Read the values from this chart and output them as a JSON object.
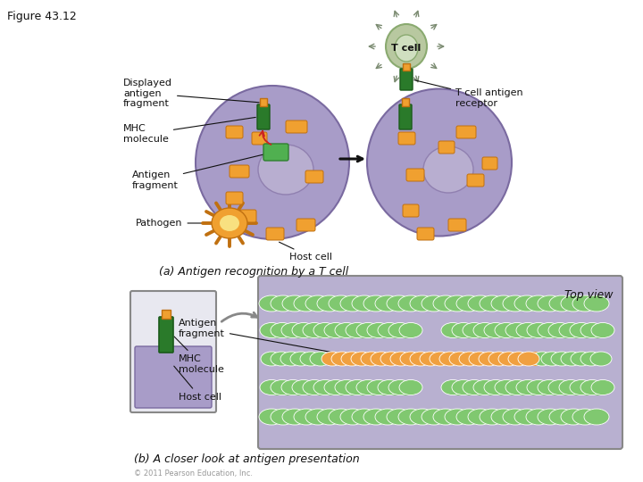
{
  "figure_label": "Figure 43.12",
  "background_color": "#ffffff",
  "labels": {
    "displayed_antigen": "Displayed\nantigen\nfragment",
    "mhc_molecule": "MHC\nmolecule",
    "antigen_fragment": "Antigen\nfragment",
    "pathogen": "Pathogen",
    "host_cell": "Host cell",
    "t_cell": "T cell",
    "t_cell_antigen_receptor": "T cell antigen\nreceptor",
    "part_a": "(a) Antigen recognition by a T cell",
    "part_b": "(b) A closer look at antigen presentation",
    "top_view": "Top view",
    "antigen_fragment_b": "Antigen\nfragment",
    "mhc_molecule_b": "MHC\nmolecule",
    "host_cell_b": "Host cell",
    "copyright": "© 2011 Pearson Education, Inc."
  },
  "colors": {
    "host_cell_fill": "#a89cc8",
    "host_cell_edge": "#7a6aa0",
    "host_cell_nucleus": "#b8aed0",
    "host_cell_nucleus_edge": "#9080b0",
    "t_cell_body": "#b8c8a0",
    "t_cell_edge": "#8aaa70",
    "t_cell_nucleus": "#d0dfc0",
    "t_cell_spike": "#7a8a70",
    "pathogen_fill": "#f0a030",
    "pathogen_center": "#f8e080",
    "pathogen_edge": "#c07010",
    "mhc_fill": "#2a7a2a",
    "mhc_edge": "#1a5a1a",
    "antigen_small_fill": "#f0a030",
    "antigen_small_edge": "#c07010",
    "antigen_green_fill": "#50b050",
    "antigen_green_edge": "#308030",
    "red_arrow": "#cc2222",
    "arrow_color": "#111111",
    "text_color": "#111111",
    "box_fill": "#e8e8f0",
    "box_edge": "#888888",
    "box_cell_fill": "#a89cc8",
    "box_cell_edge": "#7a6aa0",
    "top_view_bg": "#b8b0d0",
    "helix_green": "#80c870",
    "helix_orange": "#f0a040",
    "curved_arrow": "#888888"
  }
}
